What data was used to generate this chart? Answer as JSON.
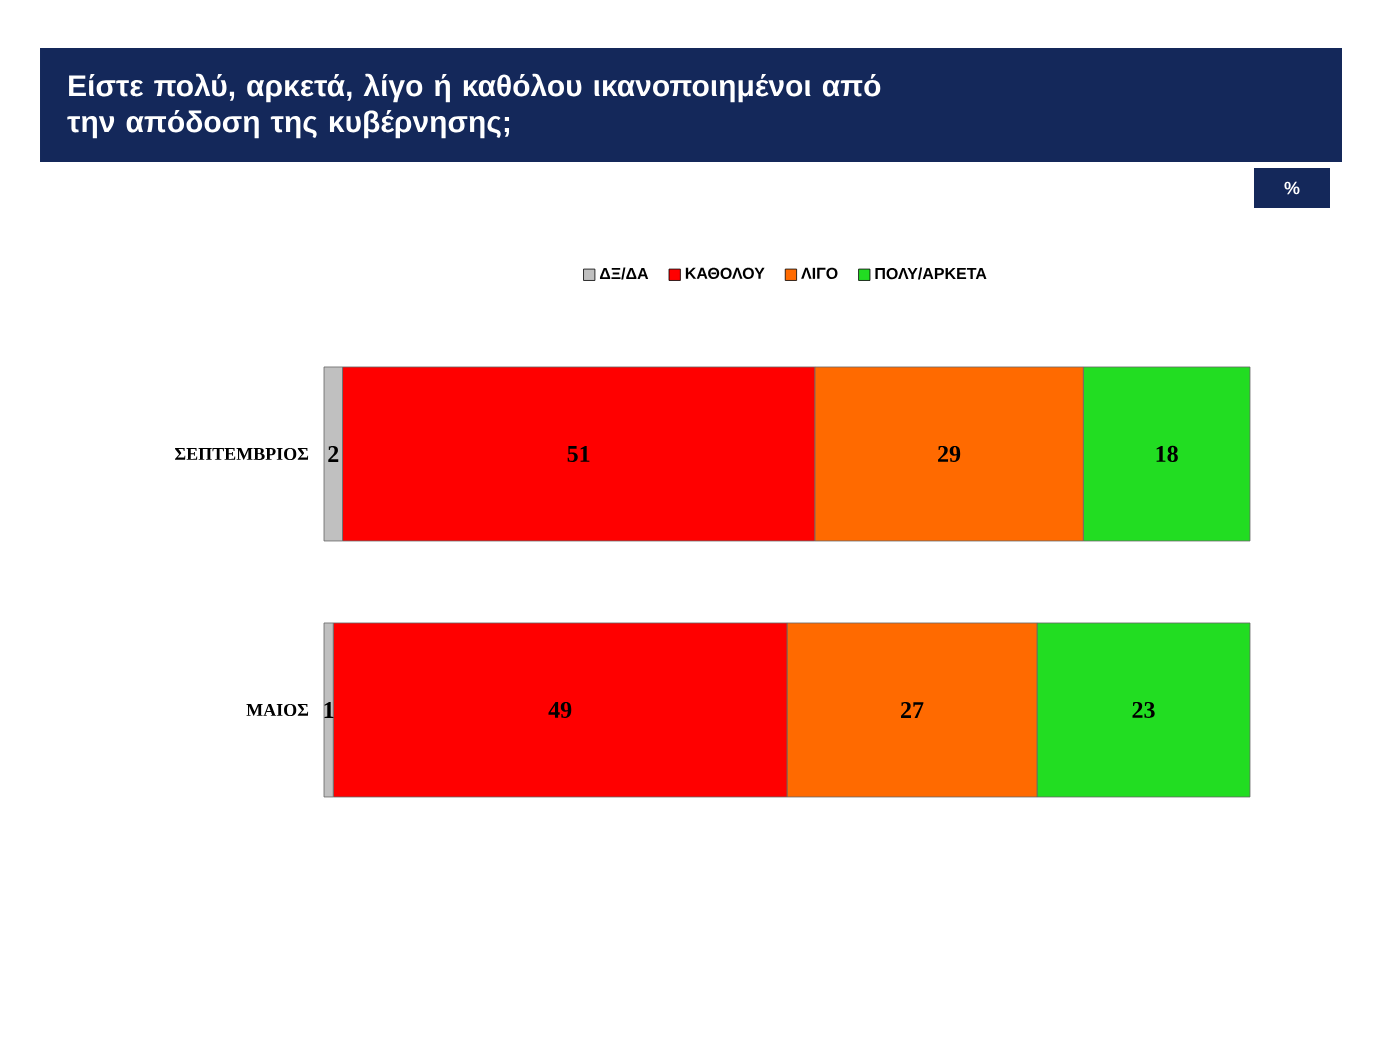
{
  "chart_data": {
    "type": "bar",
    "orientation": "horizontal",
    "stacked": true,
    "title": "Είστε πολύ, αρκετά, λίγο ή καθόλου ικανοποιημένοι από την απόδοση της κυβέρνησης;",
    "annotations": [
      "%"
    ],
    "categories": [
      "ΣΕΠΤΕΜΒΡΙΟΣ",
      "ΜΑΙΟΣ"
    ],
    "series": [
      {
        "name": "ΔΞ/ΔΑ",
        "color": "#c0c0c0",
        "values": [
          2,
          1
        ]
      },
      {
        "name": "ΚΑΘΟΛΟΥ",
        "color": "#ff0000",
        "values": [
          51,
          49
        ]
      },
      {
        "name": "ΛΙΓΟ",
        "color": "#ff6a00",
        "values": [
          29,
          27
        ]
      },
      {
        "name": "ΠΟΛΥ/ΑΡΚΕΤΑ",
        "color": "#22dd22",
        "values": [
          18,
          23
        ]
      }
    ],
    "tick_labels": "y",
    "data_labels": true,
    "legend": "top"
  }
}
